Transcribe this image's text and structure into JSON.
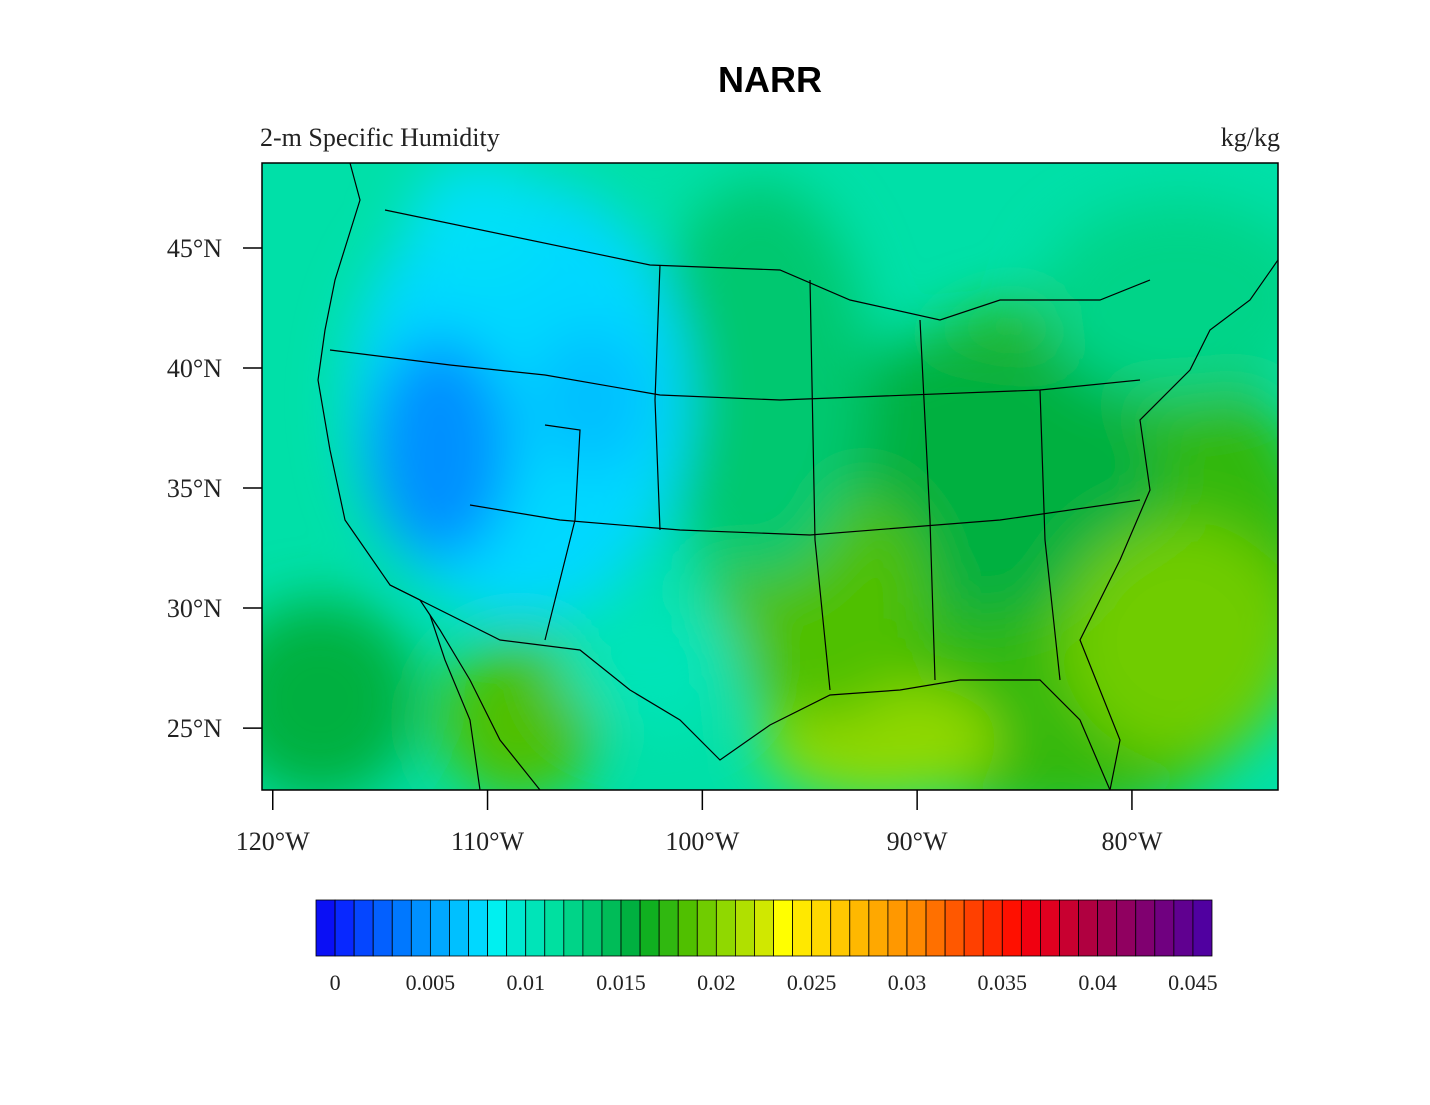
{
  "title": "NARR",
  "subtitle_left": "2-m Specific Humidity",
  "subtitle_right": "kg/kg",
  "map": {
    "xlim": [
      -120.5,
      -73.2
    ],
    "ylim": [
      22.42,
      48.54
    ],
    "lat_ticks": [
      {
        "value": 25,
        "label": "25°N"
      },
      {
        "value": 30,
        "label": "30°N"
      },
      {
        "value": 35,
        "label": "35°N"
      },
      {
        "value": 40,
        "label": "40°N"
      },
      {
        "value": 45,
        "label": "45°N"
      }
    ],
    "lon_ticks": [
      {
        "value": -120,
        "label": "120°W"
      },
      {
        "value": -110,
        "label": "110°W"
      },
      {
        "value": -100,
        "label": "100°W"
      },
      {
        "value": -90,
        "label": "90°W"
      },
      {
        "value": -80,
        "label": "80°W"
      }
    ]
  },
  "colorbar": {
    "lim": [
      -0.001,
      0.046
    ],
    "ticks": [
      0,
      0.005,
      0.01,
      0.015,
      0.02,
      0.025,
      0.03,
      0.035,
      0.04,
      0.045
    ],
    "colors": [
      "#0a0ff5",
      "#0828ff",
      "#0546ff",
      "#0360ff",
      "#0078ff",
      "#0090ff",
      "#00a8ff",
      "#00c0ff",
      "#00d8ff",
      "#00f0f0",
      "#00e8d0",
      "#00e4b8",
      "#00e0a0",
      "#00d488",
      "#00c870",
      "#00bc58",
      "#00b040",
      "#10b020",
      "#30b810",
      "#50c000",
      "#70cc00",
      "#90d800",
      "#b0e000",
      "#d0e800",
      "#ffff00",
      "#ffe800",
      "#ffd800",
      "#ffc800",
      "#ffb800",
      "#ffa800",
      "#ff9800",
      "#ff8800",
      "#ff7000",
      "#ff5800",
      "#ff4000",
      "#ff2800",
      "#ff1000",
      "#f00010",
      "#e00020",
      "#c80030",
      "#b00040",
      "#a00050",
      "#900060",
      "#800070",
      "#700080",
      "#600090",
      "#5000a0"
    ]
  }
}
